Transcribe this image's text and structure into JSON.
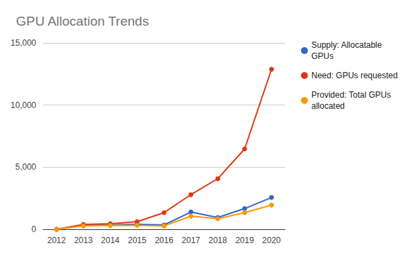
{
  "chart_data": {
    "type": "line",
    "title": "GPU Allocation Trends",
    "categories": [
      "2012",
      "2013",
      "2014",
      "2015",
      "2016",
      "2017",
      "2018",
      "2019",
      "2020"
    ],
    "series": [
      {
        "name": "Supply: Allocatable GPUs",
        "color": "#3366cc",
        "values": [
          0,
          300,
          350,
          400,
          350,
          1390,
          950,
          1670,
          2560
        ]
      },
      {
        "name": "Need: GPUs requested",
        "color": "#dc3912",
        "values": [
          0,
          390,
          450,
          610,
          1340,
          2790,
          4070,
          6470,
          12880
        ]
      },
      {
        "name": "Provided: Total GPUs allocated",
        "color": "#ff9900",
        "values": [
          0,
          280,
          300,
          320,
          270,
          1060,
          850,
          1340,
          1950
        ]
      }
    ],
    "ylim": [
      0,
      15000
    ],
    "yticks": [
      0,
      5000,
      10000,
      15000
    ],
    "grid": true,
    "legend": "right",
    "marker": "circle"
  }
}
